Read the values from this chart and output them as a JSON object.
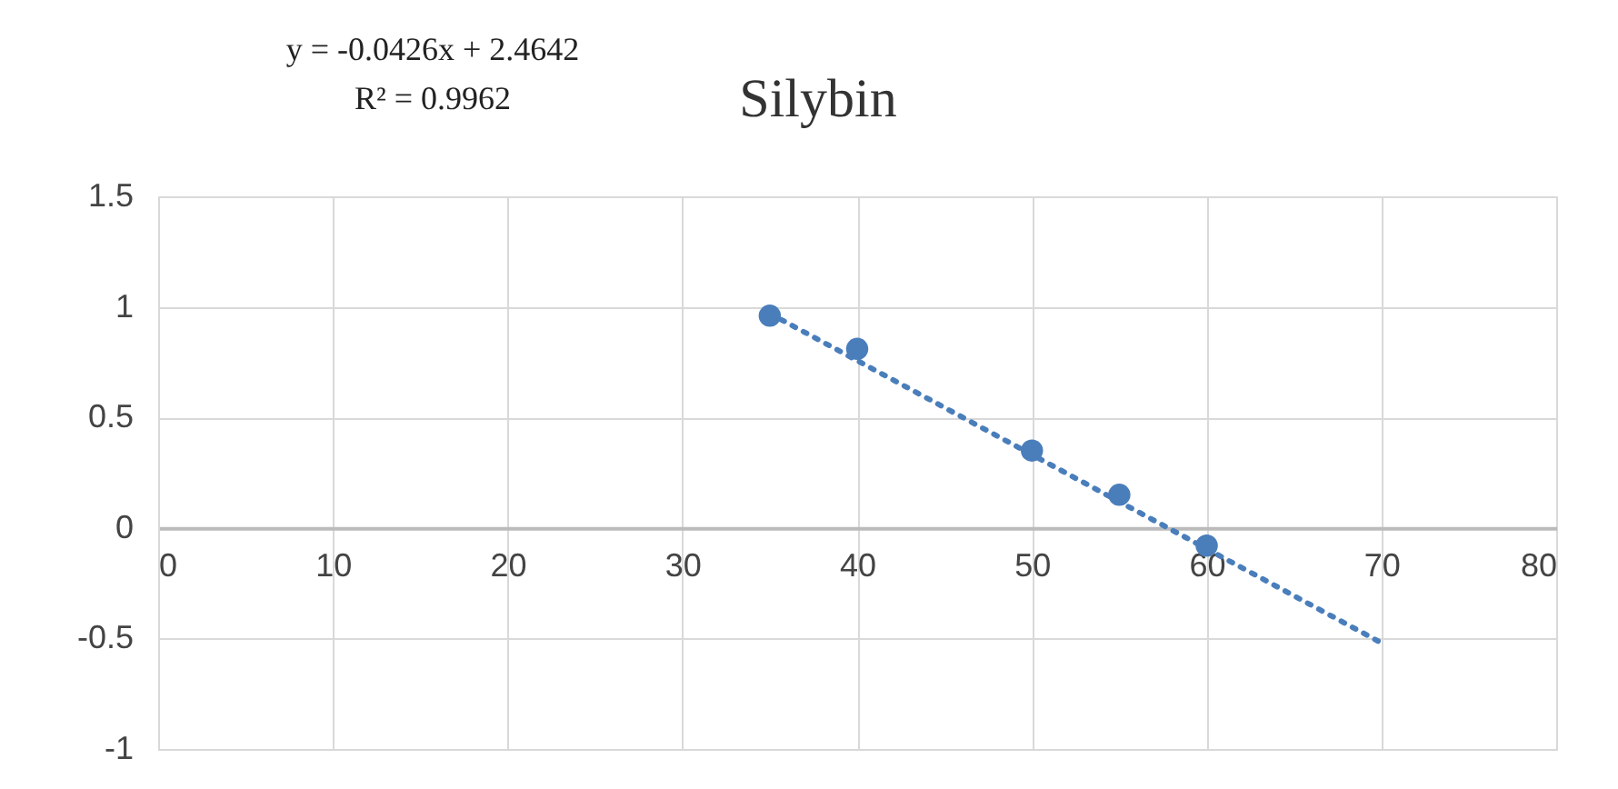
{
  "chart_data": {
    "type": "scatter",
    "title": "Silybin",
    "annotations": [
      "y = -0.0426x + 2.4642",
      "R² = 0.9962"
    ],
    "x": [
      35,
      40,
      50,
      55,
      60
    ],
    "series": [
      {
        "type": "scatter",
        "color": "#4a7ebb",
        "values": [
          0.96,
          0.81,
          0.35,
          0.15,
          -0.08
        ],
        "marker": "circle"
      },
      {
        "type": "line",
        "color": "#4a7ebb",
        "x": [
          35,
          70
        ],
        "values": [
          0.97,
          -0.52
        ],
        "line_style": "dotted"
      }
    ],
    "xlim": [
      0,
      80
    ],
    "xticks": [
      0,
      10,
      20,
      30,
      40,
      50,
      60,
      70,
      80
    ],
    "ylim": [
      -1,
      1.5
    ],
    "yticks": [
      -1,
      -0.5,
      0,
      0.5,
      1,
      1.5
    ],
    "grid": true
  }
}
